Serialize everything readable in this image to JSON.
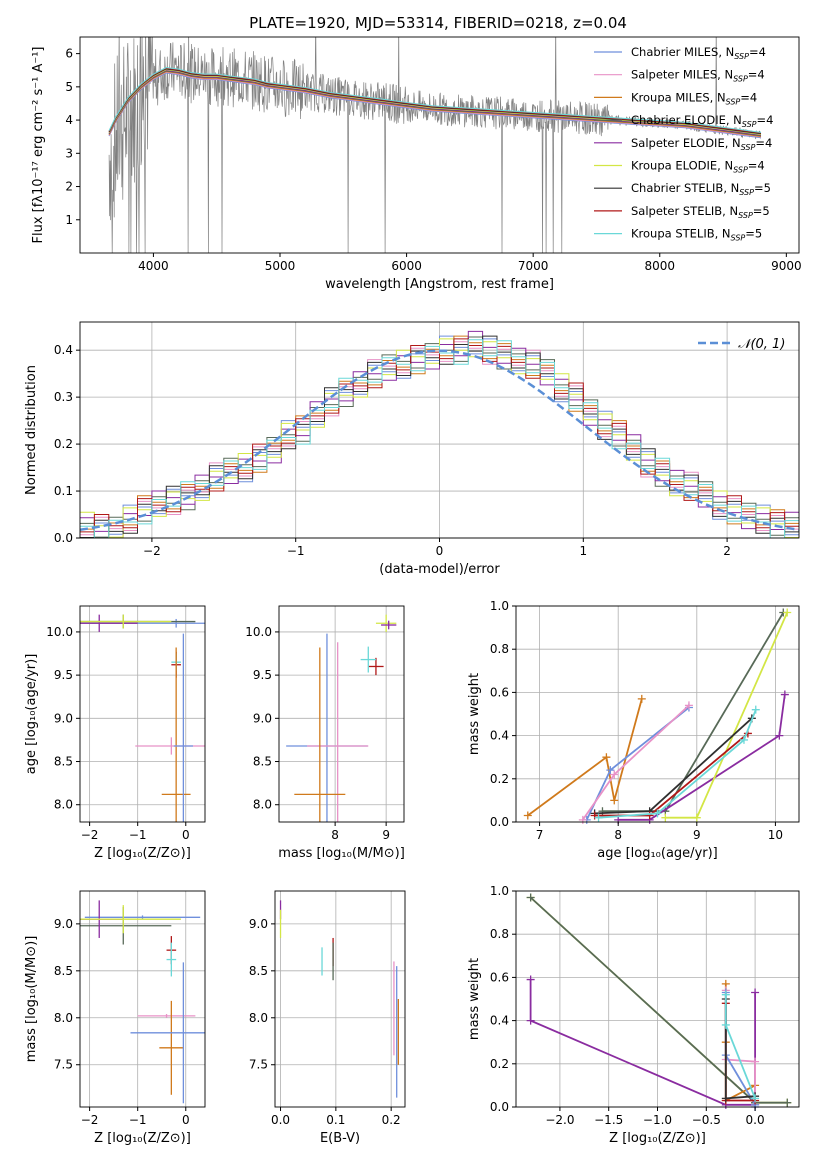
{
  "figure": {
    "title": "PLATE=1920, MJD=53314, FIBERID=0218, z=0.04"
  },
  "chart_data": [
    {
      "id": "spectrum",
      "type": "line",
      "xlabel": "wavelength [Angstrom, rest frame]",
      "ylabel": "Flux [fλ10⁻¹⁷ erg cm⁻² s⁻¹ A⁻¹]",
      "xlim": [
        3420,
        9100
      ],
      "ylim": [
        0,
        6.5
      ],
      "xticks": [
        4000,
        5000,
        6000,
        7000,
        8000,
        9000
      ],
      "yticks": [
        1,
        2,
        3,
        4,
        5,
        6
      ],
      "grid": false,
      "legend": "top-right",
      "data_series": {
        "name": "",
        "color": "#808080",
        "x": [
          3650,
          3700,
          3750,
          3800,
          3850,
          3900,
          3950,
          4000,
          4100,
          4200,
          4300,
          4400,
          4500,
          4600,
          4700,
          4800,
          4900,
          5000,
          5200,
          5400,
          5600,
          5800,
          6000,
          6200,
          6400,
          6600,
          6800,
          7000,
          7200,
          7400,
          7600,
          7800,
          8000,
          8200,
          8400,
          8600,
          8800
        ],
        "y": [
          3.0,
          3.4,
          3.8,
          4.2,
          4.5,
          4.7,
          5.0,
          5.2,
          5.5,
          5.5,
          5.4,
          5.35,
          5.3,
          5.3,
          5.25,
          5.2,
          5.1,
          5.0,
          4.9,
          4.75,
          4.65,
          4.55,
          4.45,
          4.35,
          4.3,
          4.25,
          4.2,
          4.15,
          4.1,
          4.05,
          4.0,
          3.95,
          3.9,
          3.85,
          3.75,
          3.65,
          3.55
        ]
      },
      "model": {
        "x": [
          3650,
          3700,
          3800,
          3900,
          4000,
          4100,
          4200,
          4300,
          4400,
          4500,
          4600,
          4700,
          4800,
          4900,
          5000,
          5200,
          5400,
          5600,
          5800,
          6000,
          6200,
          6400,
          6600,
          6800,
          7000,
          7200,
          7400,
          7600,
          7800,
          8000,
          8200,
          8400,
          8600,
          8800
        ],
        "y": [
          3.6,
          4.0,
          4.6,
          5.0,
          5.3,
          5.5,
          5.45,
          5.35,
          5.3,
          5.3,
          5.25,
          5.2,
          5.15,
          5.05,
          5.0,
          4.9,
          4.75,
          4.65,
          4.55,
          4.45,
          4.35,
          4.3,
          4.25,
          4.2,
          4.15,
          4.1,
          4.05,
          4.0,
          3.95,
          3.9,
          3.85,
          3.75,
          3.65,
          3.55
        ]
      },
      "series": [
        {
          "name": "Chabrier MILES, N",
          "sub": "SSP",
          "suffix": "=4",
          "color": "#6f8fdc"
        },
        {
          "name": "Salpeter MILES, N",
          "sub": "SSP",
          "suffix": "=4",
          "color": "#e892c7"
        },
        {
          "name": "Kroupa MILES, N",
          "sub": "SSP",
          "suffix": "=4",
          "color": "#d07a1c"
        },
        {
          "name": "Chabrier ELODIE, N",
          "sub": "SSP",
          "suffix": "=4",
          "color": "#586a58"
        },
        {
          "name": "Salpeter ELODIE, N",
          "sub": "SSP",
          "suffix": "=4",
          "color": "#8a2ca0"
        },
        {
          "name": "Kroupa ELODIE, N",
          "sub": "SSP",
          "suffix": "=4",
          "color": "#d3e645"
        },
        {
          "name": "Chabrier STELIB, N",
          "sub": "SSP",
          "suffix": "=5",
          "color": "#303030"
        },
        {
          "name": "Salpeter STELIB, N",
          "sub": "SSP",
          "suffix": "=5",
          "color": "#b01818"
        },
        {
          "name": "Kroupa STELIB, N",
          "sub": "SSP",
          "suffix": "=5",
          "color": "#6ad8d8"
        }
      ]
    },
    {
      "id": "residuals",
      "type": "bar",
      "xlabel": "(data-model)/error",
      "ylabel": "Normed distribution",
      "xlim": [
        -2.5,
        2.5
      ],
      "ylim": [
        0,
        0.46
      ],
      "xticks": [
        -2,
        -1,
        0,
        1,
        2
      ],
      "yticks": [
        0.0,
        0.1,
        0.2,
        0.3,
        0.4
      ],
      "grid": true,
      "legend": "top-right",
      "bin_width": 0.1,
      "bin_start": -2.5,
      "normal_curve_label": "𝒩(0, 1)",
      "histogram_base": [
        0.025,
        0.02,
        0.02,
        0.04,
        0.06,
        0.07,
        0.08,
        0.09,
        0.11,
        0.13,
        0.14,
        0.15,
        0.17,
        0.19,
        0.22,
        0.23,
        0.26,
        0.29,
        0.31,
        0.33,
        0.35,
        0.36,
        0.37,
        0.38,
        0.39,
        0.4,
        0.4,
        0.41,
        0.4,
        0.39,
        0.38,
        0.37,
        0.35,
        0.32,
        0.3,
        0.27,
        0.24,
        0.22,
        0.19,
        0.16,
        0.14,
        0.12,
        0.11,
        0.09,
        0.07,
        0.06,
        0.05,
        0.04,
        0.03,
        0.025
      ],
      "series_colors": [
        "#6f8fdc",
        "#e892c7",
        "#d07a1c",
        "#586a58",
        "#8a2ca0",
        "#d3e645",
        "#303030",
        "#b01818",
        "#6ad8d8"
      ]
    },
    {
      "id": "age_vs_Z",
      "type": "scatter",
      "xlabel": "Z [log₁₀(Z/Z⊙)]",
      "ylabel": "age  [log₁₀(age/yr)]",
      "xlim": [
        -2.2,
        0.4
      ],
      "ylim": [
        7.8,
        10.3
      ],
      "xticks": [
        -2,
        -1,
        0
      ],
      "yticks": [
        8.0,
        8.5,
        9.0,
        9.5,
        10.0
      ],
      "grid": true,
      "points": [
        {
          "x": -0.2,
          "y": 10.1,
          "xerr": 2.0,
          "yerr": 0.05,
          "color": "#6f8fdc"
        },
        {
          "x": -1.3,
          "y": 10.12,
          "xerr": 1.5,
          "yerr": 0.08,
          "color": "#586a58"
        },
        {
          "x": -1.8,
          "y": 10.1,
          "xerr": 0.8,
          "yerr": 0.1,
          "color": "#8a2ca0"
        },
        {
          "x": -1.3,
          "y": 10.12,
          "xerr": 1.0,
          "yerr": 0.08,
          "color": "#d3e645"
        },
        {
          "x": -0.2,
          "y": 9.62,
          "xerr": 0.1,
          "yerr": 0.15,
          "color": "#b01818"
        },
        {
          "x": -0.2,
          "y": 9.65,
          "xerr": 0.1,
          "yerr": 0.1,
          "color": "#6ad8d8"
        },
        {
          "x": -0.2,
          "y": 8.12,
          "xerr": 0.3,
          "yerr": 1.7,
          "color": "#d07a1c"
        },
        {
          "x": -0.3,
          "y": 8.68,
          "xerr": 0.75,
          "yerr": 0.1,
          "color": "#e892c7"
        },
        {
          "x": -0.05,
          "y": 8.68,
          "xerr": 0.2,
          "yerr": 1.3,
          "color": "#6f8fdc"
        }
      ]
    },
    {
      "id": "age_vs_mass",
      "type": "scatter",
      "xlabel": "mass [log₁₀(M/M⊙)]",
      "ylabel": "",
      "xlim": [
        6.9,
        9.35
      ],
      "ylim": [
        7.8,
        10.3
      ],
      "xticks": [
        8,
        9
      ],
      "yticks": [
        8.0,
        8.5,
        9.0,
        9.5,
        10.0
      ],
      "grid": true,
      "points": [
        {
          "x": 9.0,
          "y": 10.1,
          "xerr": 0.2,
          "yerr": 0.1,
          "color": "#d3e645"
        },
        {
          "x": 9.05,
          "y": 10.08,
          "xerr": 0.15,
          "yerr": 0.05,
          "color": "#8a2ca0"
        },
        {
          "x": 8.8,
          "y": 9.6,
          "xerr": 0.15,
          "yerr": 0.1,
          "color": "#b01818"
        },
        {
          "x": 8.65,
          "y": 9.68,
          "xerr": 0.15,
          "yerr": 0.15,
          "color": "#6ad8d8"
        },
        {
          "x": 7.84,
          "y": 8.68,
          "xerr": 0.8,
          "yerr": 1.3,
          "color": "#6f8fdc"
        },
        {
          "x": 8.05,
          "y": 8.68,
          "xerr": 0.6,
          "yerr": 1.2,
          "color": "#e892c7"
        },
        {
          "x": 7.7,
          "y": 8.12,
          "xerr": 0.5,
          "yerr": 1.7,
          "color": "#d07a1c"
        }
      ]
    },
    {
      "id": "massweight_vs_age",
      "type": "line",
      "xlabel": "age  [log₁₀(age/yr)]",
      "ylabel": "mass weight",
      "xlim": [
        6.7,
        10.3
      ],
      "ylim": [
        0,
        1.0
      ],
      "xticks": [
        7,
        8,
        9,
        10
      ],
      "yticks": [
        0.0,
        0.2,
        0.4,
        0.6,
        0.8,
        1.0
      ],
      "grid": true,
      "series": [
        {
          "name": "Kroupa MILES",
          "color": "#d07a1c",
          "x": [
            6.85,
            7.85,
            7.95,
            8.3
          ],
          "y": [
            0.03,
            0.3,
            0.1,
            0.57
          ]
        },
        {
          "name": "Chabrier MILES",
          "color": "#6f8fdc",
          "x": [
            7.6,
            7.9,
            8.9
          ],
          "y": [
            0.01,
            0.24,
            0.53
          ]
        },
        {
          "name": "Salpeter MILES",
          "color": "#e892c7",
          "x": [
            7.55,
            7.95,
            8.9
          ],
          "y": [
            0.01,
            0.22,
            0.54
          ]
        },
        {
          "name": "Chabrier ELODIE",
          "color": "#586a58",
          "x": [
            7.8,
            8.6,
            10.1
          ],
          "y": [
            0.05,
            0.05,
            0.97
          ]
        },
        {
          "name": "Salpeter ELODIE",
          "color": "#8a2ca0",
          "x": [
            8.0,
            8.4,
            10.05,
            10.12
          ],
          "y": [
            0.01,
            0.01,
            0.4,
            0.59
          ]
        },
        {
          "name": "Kroupa ELODIE",
          "color": "#d3e645",
          "x": [
            8.6,
            9.0,
            10.15
          ],
          "y": [
            0.02,
            0.02,
            0.97
          ]
        },
        {
          "name": "Chabrier STELIB",
          "color": "#303030",
          "x": [
            7.7,
            8.4,
            9.7
          ],
          "y": [
            0.04,
            0.05,
            0.48
          ]
        },
        {
          "name": "Salpeter STELIB",
          "color": "#b01818",
          "x": [
            7.7,
            8.4,
            9.65
          ],
          "y": [
            0.03,
            0.03,
            0.41
          ]
        },
        {
          "name": "Kroupa STELIB",
          "color": "#6ad8d8",
          "x": [
            7.75,
            8.5,
            9.6,
            9.75
          ],
          "y": [
            0.02,
            0.04,
            0.38,
            0.52
          ]
        }
      ]
    },
    {
      "id": "mass_vs_Z",
      "type": "scatter",
      "xlabel": "Z [log₁₀(Z/Z⊙)]",
      "ylabel": "mass [log₁₀(M/M⊙)]",
      "xlim": [
        -2.2,
        0.4
      ],
      "ylim": [
        7.05,
        9.35
      ],
      "xticks": [
        -2,
        -1,
        0
      ],
      "yticks": [
        7.5,
        8.0,
        8.5,
        9.0
      ],
      "grid": true,
      "points": [
        {
          "x": -0.9,
          "y": 9.07,
          "xerr": 1.2,
          "yerr": 0.02,
          "color": "#6f8fdc"
        },
        {
          "x": -1.3,
          "y": 8.98,
          "xerr": 1.0,
          "yerr": 0.2,
          "color": "#586a58"
        },
        {
          "x": -1.8,
          "y": 9.05,
          "xerr": 0.5,
          "yerr": 0.2,
          "color": "#8a2ca0"
        },
        {
          "x": -1.3,
          "y": 9.05,
          "xerr": 1.2,
          "yerr": 0.15,
          "color": "#d3e645"
        },
        {
          "x": -0.3,
          "y": 8.72,
          "xerr": 0.1,
          "yerr": 0.15,
          "color": "#b01818"
        },
        {
          "x": -0.3,
          "y": 8.62,
          "xerr": 0.1,
          "yerr": 0.18,
          "color": "#6ad8d8"
        },
        {
          "x": -0.4,
          "y": 8.02,
          "xerr": 0.6,
          "yerr": 0.02,
          "color": "#e892c7"
        },
        {
          "x": -0.3,
          "y": 7.68,
          "xerr": 0.25,
          "yerr": 0.5,
          "color": "#d07a1c"
        },
        {
          "x": -0.05,
          "y": 7.84,
          "xerr": 1.1,
          "yerr": 0.75,
          "color": "#6f8fdc"
        }
      ]
    },
    {
      "id": "mass_vs_EBV",
      "type": "scatter",
      "xlabel": "E(B-V)",
      "ylabel": "",
      "xlim": [
        -0.01,
        0.225
      ],
      "ylim": [
        7.05,
        9.35
      ],
      "xticks": [
        0.0,
        0.1,
        0.2
      ],
      "yticks": [
        7.5,
        8.0,
        8.5,
        9.0
      ],
      "grid": true,
      "points": [
        {
          "x": 0.0,
          "y": 9.15,
          "xerr": 0,
          "yerr": 0.1,
          "color": "#8a2ca0"
        },
        {
          "x": 0.0,
          "y": 9.0,
          "xerr": 0,
          "yerr": 0.15,
          "color": "#d3e645"
        },
        {
          "x": 0.075,
          "y": 8.6,
          "xerr": 0,
          "yerr": 0.15,
          "color": "#6ad8d8"
        },
        {
          "x": 0.095,
          "y": 8.7,
          "xerr": 0,
          "yerr": 0.15,
          "color": "#b01818"
        },
        {
          "x": 0.095,
          "y": 8.6,
          "xerr": 0,
          "yerr": 0.2,
          "color": "#586a58"
        },
        {
          "x": 0.205,
          "y": 8.1,
          "xerr": 0,
          "yerr": 0.5,
          "color": "#e892c7"
        },
        {
          "x": 0.21,
          "y": 7.85,
          "xerr": 0,
          "yerr": 0.7,
          "color": "#6f8fdc"
        },
        {
          "x": 0.213,
          "y": 7.85,
          "xerr": 0,
          "yerr": 0.35,
          "color": "#d07a1c"
        }
      ]
    },
    {
      "id": "massweight_vs_Z",
      "type": "line",
      "xlabel": "Z [log₁₀(Z/Z⊙)]",
      "ylabel": "mass weight",
      "xlim": [
        -2.45,
        0.45
      ],
      "ylim": [
        0,
        1.0
      ],
      "xticks": [
        -2.0,
        -1.5,
        -1.0,
        -0.5,
        0.0
      ],
      "yticks": [
        0.0,
        0.2,
        0.4,
        0.6,
        0.8,
        1.0
      ],
      "grid": true,
      "series": [
        {
          "name": "Kroupa ELODIE",
          "color": "#d3e645",
          "x": [
            -2.3,
            0.0,
            0.33
          ],
          "y": [
            0.97,
            0.02,
            0.02
          ]
        },
        {
          "name": "Chabrier ELODIE",
          "color": "#586a58",
          "x": [
            -2.3,
            0.0,
            0.33
          ],
          "y": [
            0.97,
            0.02,
            0.02
          ]
        },
        {
          "name": "Salpeter ELODIE",
          "color": "#8a2ca0",
          "x": [
            -2.3,
            -2.3,
            -0.3,
            0.0,
            0.0
          ],
          "y": [
            0.59,
            0.4,
            0.01,
            0.01,
            0.53
          ]
        },
        {
          "name": "Kroupa MILES",
          "color": "#d07a1c",
          "x": [
            -0.3,
            -0.3,
            -0.3,
            0.0
          ],
          "y": [
            0.57,
            0.3,
            0.03,
            0.1
          ]
        },
        {
          "name": "Salpeter MILES",
          "color": "#e892c7",
          "x": [
            -0.3,
            -0.3,
            0.0,
            0.0
          ],
          "y": [
            0.54,
            0.22,
            0.21,
            0.01
          ]
        },
        {
          "name": "Chabrier MILES",
          "color": "#6f8fdc",
          "x": [
            -0.3,
            -0.3,
            0.0,
            0.0
          ],
          "y": [
            0.53,
            0.24,
            0.01,
            0.0
          ]
        },
        {
          "name": "Salpeter STELIB",
          "color": "#b01818",
          "x": [
            -0.3,
            -0.3,
            0.0
          ],
          "y": [
            0.48,
            0.03,
            0.03
          ]
        },
        {
          "name": "Chabrier STELIB",
          "color": "#303030",
          "x": [
            -0.3,
            -0.3,
            0.0
          ],
          "y": [
            0.5,
            0.04,
            0.05
          ]
        },
        {
          "name": "Kroupa STELIB",
          "color": "#6ad8d8",
          "x": [
            -0.3,
            -0.3,
            0.0
          ],
          "y": [
            0.52,
            0.38,
            0.04
          ]
        }
      ]
    }
  ]
}
